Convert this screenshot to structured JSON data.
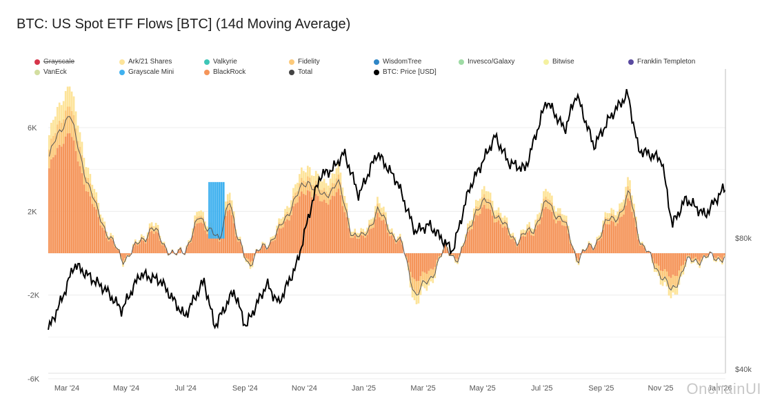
{
  "title": "BTC: US Spot ETF Flows [BTC] (14d Moving Average)",
  "watermark": "OnchainUI",
  "legend": [
    {
      "name": "Grayscale",
      "color": "#d6354a",
      "struck": true
    },
    {
      "name": "Ark/21 Shares",
      "color": "#fde49a",
      "struck": false
    },
    {
      "name": "Valkyrie",
      "color": "#3ec6b7",
      "struck": false
    },
    {
      "name": "Fidelity",
      "color": "#fcc97a",
      "struck": false
    },
    {
      "name": "WisdomTree",
      "color": "#2f86c6",
      "struck": false
    },
    {
      "name": "Invesco/Galaxy",
      "color": "#9edba4",
      "struck": false
    },
    {
      "name": "Bitwise",
      "color": "#f4f1a0",
      "struck": false
    },
    {
      "name": "Franklin Templeton",
      "color": "#5a4aa0",
      "struck": false
    },
    {
      "name": "VanEck",
      "color": "#d3dea0",
      "struck": false
    },
    {
      "name": "Grayscale Mini",
      "color": "#40b1ef",
      "struck": false
    },
    {
      "name": "BlackRock",
      "color": "#f5955a",
      "struck": false
    },
    {
      "name": "Total",
      "color": "#444444",
      "struck": false
    },
    {
      "name": "BTC: Price [USD]",
      "color": "#000000",
      "struck": false
    }
  ],
  "chart_data": {
    "type": "bar",
    "x_labels": [
      "Mar '24",
      "May '24",
      "Jul '24",
      "Sep '24",
      "Nov '24",
      "Jan '25",
      "Mar '25",
      "May '25",
      "Jul '25",
      "Sep '25",
      "Nov '25",
      "Jan '26"
    ],
    "y_left": {
      "ticks": [
        "6K",
        "2K",
        "-2K",
        "-6K"
      ],
      "tick_values": [
        6000,
        2000,
        -2000,
        -6000
      ],
      "range": [
        -6000,
        8500
      ]
    },
    "y_right": {
      "ticks": [
        "$80k",
        "$40k"
      ],
      "tick_values": [
        80000,
        40000
      ],
      "range": [
        40000,
        140000
      ]
    },
    "date_range": [
      "2024-02-15",
      "2026-01-15"
    ],
    "flow_keypoints": [
      [
        "2024-02-15",
        5500
      ],
      [
        "2024-03-01",
        7500
      ],
      [
        "2024-03-08",
        8200
      ],
      [
        "2024-03-15",
        6500
      ],
      [
        "2024-03-25",
        4500
      ],
      [
        "2024-04-05",
        2500
      ],
      [
        "2024-04-20",
        800
      ],
      [
        "2024-05-01",
        -400
      ],
      [
        "2024-05-15",
        300
      ],
      [
        "2024-06-01",
        1500
      ],
      [
        "2024-06-10",
        800
      ],
      [
        "2024-06-25",
        -200
      ],
      [
        "2024-07-05",
        200
      ],
      [
        "2024-07-20",
        2000
      ],
      [
        "2024-08-01",
        1500
      ],
      [
        "2024-08-10",
        500
      ],
      [
        "2024-08-20",
        3500
      ],
      [
        "2024-08-28",
        800
      ],
      [
        "2024-09-10",
        -600
      ],
      [
        "2024-09-25",
        400
      ],
      [
        "2024-10-10",
        1200
      ],
      [
        "2024-10-25",
        3000
      ],
      [
        "2024-11-10",
        4300
      ],
      [
        "2024-11-25",
        3200
      ],
      [
        "2024-12-10",
        4200
      ],
      [
        "2024-12-25",
        1200
      ],
      [
        "2025-01-05",
        800
      ],
      [
        "2025-01-20",
        2500
      ],
      [
        "2025-02-01",
        1500
      ],
      [
        "2025-02-15",
        400
      ],
      [
        "2025-03-01",
        -2500
      ],
      [
        "2025-03-15",
        -1500
      ],
      [
        "2025-04-01",
        300
      ],
      [
        "2025-04-15",
        -400
      ],
      [
        "2025-05-01",
        2500
      ],
      [
        "2025-05-15",
        3000
      ],
      [
        "2025-06-01",
        1500
      ],
      [
        "2025-06-15",
        700
      ],
      [
        "2025-07-01",
        1500
      ],
      [
        "2025-07-15",
        3000
      ],
      [
        "2025-08-01",
        1800
      ],
      [
        "2025-08-15",
        -300
      ],
      [
        "2025-09-01",
        500
      ],
      [
        "2025-09-15",
        1800
      ],
      [
        "2025-10-01",
        2500
      ],
      [
        "2025-10-08",
        3500
      ],
      [
        "2025-10-20",
        500
      ],
      [
        "2025-11-05",
        -800
      ],
      [
        "2025-11-20",
        -2300
      ],
      [
        "2025-12-05",
        -600
      ],
      [
        "2025-12-20",
        -300
      ],
      [
        "2026-01-15",
        -200
      ]
    ],
    "price_keypoints": [
      [
        "2024-02-15",
        52000
      ],
      [
        "2024-03-01",
        62000
      ],
      [
        "2024-03-13",
        72000
      ],
      [
        "2024-04-15",
        64000
      ],
      [
        "2024-05-01",
        58000
      ],
      [
        "2024-05-20",
        69000
      ],
      [
        "2024-06-10",
        67000
      ],
      [
        "2024-07-05",
        56000
      ],
      [
        "2024-07-25",
        67000
      ],
      [
        "2024-08-05",
        53000
      ],
      [
        "2024-08-25",
        64000
      ],
      [
        "2024-09-06",
        53000
      ],
      [
        "2024-09-28",
        66000
      ],
      [
        "2024-10-10",
        60000
      ],
      [
        "2024-10-29",
        72000
      ],
      [
        "2024-11-13",
        90000
      ],
      [
        "2024-11-22",
        99000
      ],
      [
        "2024-12-05",
        101000
      ],
      [
        "2024-12-17",
        106000
      ],
      [
        "2025-01-01",
        93000
      ],
      [
        "2025-01-20",
        106000
      ],
      [
        "2025-02-10",
        97000
      ],
      [
        "2025-02-28",
        82000
      ],
      [
        "2025-03-15",
        84000
      ],
      [
        "2025-04-08",
        76000
      ],
      [
        "2025-04-25",
        95000
      ],
      [
        "2025-05-22",
        111000
      ],
      [
        "2025-06-05",
        103000
      ],
      [
        "2025-06-22",
        101000
      ],
      [
        "2025-07-14",
        122000
      ],
      [
        "2025-08-02",
        113000
      ],
      [
        "2025-08-14",
        124000
      ],
      [
        "2025-09-01",
        108000
      ],
      [
        "2025-09-18",
        117000
      ],
      [
        "2025-10-06",
        124000
      ],
      [
        "2025-10-17",
        107000
      ],
      [
        "2025-11-10",
        104000
      ],
      [
        "2025-11-21",
        84000
      ],
      [
        "2025-12-05",
        92000
      ],
      [
        "2025-12-25",
        87000
      ],
      [
        "2026-01-13",
        95000
      ]
    ]
  }
}
